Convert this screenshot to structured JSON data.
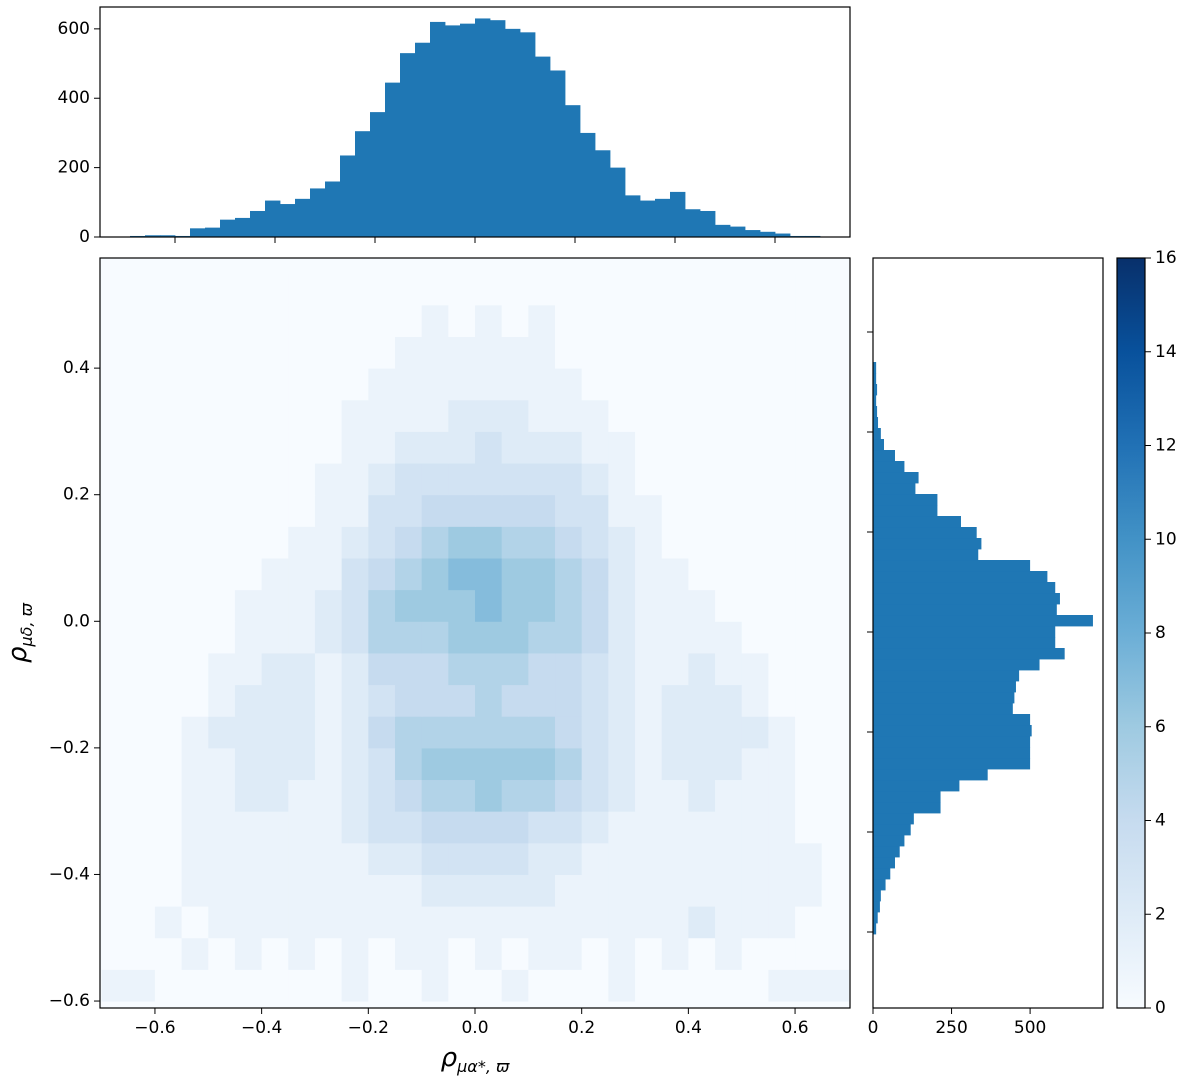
{
  "chart_data": [
    {
      "type": "heatmap",
      "xlabel": {
        "main": "ρ",
        "sub": "μα*, ϖ"
      },
      "ylabel": {
        "main": "ρ",
        "sub": "μδ, ϖ"
      },
      "xlim": [
        -0.703,
        0.703
      ],
      "ylim": [
        -0.611,
        0.574
      ],
      "xticks": [
        {
          "value": -0.6,
          "label": "−0.6"
        },
        {
          "value": -0.4,
          "label": "−0.4"
        },
        {
          "value": -0.2,
          "label": "−0.2"
        },
        {
          "value": 0,
          "label": "0.0"
        },
        0.2,
        0.4,
        0.6
      ],
      "yticks": [
        {
          "value": -0.6,
          "label": "−0.6"
        },
        {
          "value": -0.4,
          "label": "−0.4"
        },
        {
          "value": -0.2,
          "label": "−0.2"
        },
        {
          "value": 0,
          "label": "0.0"
        },
        0.2,
        0.4
      ],
      "xbins": [
        -0.7,
        -0.65,
        -0.6,
        -0.55,
        -0.5,
        -0.45,
        -0.4,
        -0.35,
        -0.3,
        -0.25,
        -0.2,
        -0.15,
        -0.1,
        -0.05,
        0,
        0.05,
        0.1,
        0.15,
        0.2,
        0.25,
        0.3,
        0.35,
        0.4,
        0.45,
        0.5,
        0.55,
        0.6,
        0.65,
        0.7
      ],
      "ybins": [
        -0.6,
        -0.55,
        -0.5,
        -0.45,
        -0.4,
        -0.35,
        -0.3,
        -0.25,
        -0.2,
        -0.15,
        -0.1,
        -0.05,
        0,
        0.05,
        0.1,
        0.15,
        0.2,
        0.25,
        0.3,
        0.35,
        0.4,
        0.45,
        0.5,
        0.55
      ],
      "z": [
        [
          1,
          1,
          0,
          0,
          0,
          0,
          0,
          0,
          0,
          1,
          0,
          0,
          1,
          0,
          0,
          1,
          0,
          0,
          0,
          1,
          0,
          0,
          0,
          0,
          0,
          1,
          1,
          1
        ],
        [
          0,
          0,
          0,
          1,
          0,
          1,
          0,
          1,
          0,
          1,
          0,
          1,
          1,
          0,
          1,
          0,
          1,
          1,
          0,
          1,
          0,
          1,
          0,
          1,
          0,
          0,
          0,
          0
        ],
        [
          0,
          0,
          1,
          0,
          1,
          1,
          1,
          1,
          1,
          1,
          1,
          1,
          1,
          1,
          1,
          1,
          1,
          1,
          1,
          1,
          1,
          1,
          2,
          1,
          1,
          1,
          0,
          0
        ],
        [
          0,
          0,
          0,
          1,
          1,
          1,
          1,
          1,
          1,
          1,
          1,
          1,
          2,
          2,
          2,
          2,
          2,
          1,
          1,
          1,
          1,
          1,
          1,
          1,
          1,
          1,
          1,
          0
        ],
        [
          0,
          0,
          0,
          1,
          1,
          1,
          1,
          1,
          1,
          1,
          2,
          2,
          3,
          3,
          3,
          3,
          2,
          2,
          1,
          1,
          1,
          1,
          1,
          1,
          1,
          1,
          1,
          0
        ],
        [
          0,
          0,
          0,
          1,
          1,
          1,
          1,
          1,
          1,
          2,
          3,
          3,
          4,
          4,
          4,
          4,
          3,
          3,
          2,
          1,
          1,
          1,
          1,
          1,
          1,
          1,
          0,
          0
        ],
        [
          0,
          0,
          0,
          1,
          1,
          2,
          2,
          1,
          1,
          2,
          3,
          4,
          5,
          5,
          6,
          5,
          5,
          4,
          3,
          2,
          1,
          1,
          2,
          1,
          1,
          1,
          0,
          0
        ],
        [
          0,
          0,
          0,
          1,
          1,
          2,
          2,
          2,
          1,
          2,
          3,
          5,
          6,
          6,
          6,
          6,
          6,
          5,
          3,
          2,
          1,
          2,
          2,
          2,
          1,
          1,
          0,
          0
        ],
        [
          0,
          0,
          0,
          1,
          2,
          2,
          2,
          2,
          1,
          2,
          4,
          5,
          5,
          5,
          5,
          5,
          5,
          4,
          3,
          2,
          1,
          2,
          2,
          2,
          2,
          1,
          0,
          0
        ],
        [
          0,
          0,
          0,
          0,
          1,
          2,
          2,
          2,
          1,
          2,
          3,
          4,
          4,
          4,
          5,
          4,
          4,
          4,
          3,
          2,
          1,
          2,
          2,
          2,
          1,
          0,
          0,
          0
        ],
        [
          0,
          0,
          0,
          0,
          1,
          1,
          2,
          2,
          1,
          2,
          4,
          4,
          4,
          5,
          5,
          5,
          4,
          4,
          3,
          2,
          1,
          1,
          2,
          1,
          1,
          0,
          0,
          0
        ],
        [
          0,
          0,
          0,
          0,
          0,
          1,
          1,
          1,
          2,
          3,
          5,
          5,
          5,
          6,
          6,
          6,
          5,
          5,
          4,
          2,
          1,
          1,
          1,
          1,
          0,
          0,
          0,
          0
        ],
        [
          0,
          0,
          0,
          0,
          0,
          1,
          1,
          1,
          2,
          3,
          5,
          6,
          6,
          6,
          7,
          6,
          6,
          5,
          4,
          2,
          1,
          1,
          1,
          0,
          0,
          0,
          0,
          0
        ],
        [
          0,
          0,
          0,
          0,
          0,
          0,
          1,
          1,
          1,
          3,
          4,
          5,
          6,
          7,
          7,
          6,
          6,
          5,
          4,
          2,
          1,
          1,
          0,
          0,
          0,
          0,
          0,
          0
        ],
        [
          0,
          0,
          0,
          0,
          0,
          0,
          0,
          1,
          1,
          2,
          3,
          4,
          5,
          6,
          6,
          5,
          5,
          4,
          3,
          2,
          1,
          0,
          0,
          0,
          0,
          0,
          0,
          0
        ],
        [
          0,
          0,
          0,
          0,
          0,
          0,
          0,
          0,
          1,
          1,
          3,
          3,
          4,
          4,
          4,
          4,
          4,
          3,
          3,
          1,
          1,
          0,
          0,
          0,
          0,
          0,
          0,
          0
        ],
        [
          0,
          0,
          0,
          0,
          0,
          0,
          0,
          0,
          1,
          1,
          2,
          3,
          3,
          3,
          3,
          3,
          3,
          3,
          2,
          1,
          0,
          0,
          0,
          0,
          0,
          0,
          0,
          0
        ],
        [
          0,
          0,
          0,
          0,
          0,
          0,
          0,
          0,
          0,
          1,
          1,
          2,
          2,
          2,
          3,
          2,
          2,
          2,
          1,
          1,
          0,
          0,
          0,
          0,
          0,
          0,
          0,
          0
        ],
        [
          0,
          0,
          0,
          0,
          0,
          0,
          0,
          0,
          0,
          1,
          1,
          1,
          1,
          2,
          2,
          2,
          1,
          1,
          1,
          0,
          0,
          0,
          0,
          0,
          0,
          0,
          0,
          0
        ],
        [
          0,
          0,
          0,
          0,
          0,
          0,
          0,
          0,
          0,
          0,
          1,
          1,
          1,
          1,
          1,
          1,
          1,
          1,
          0,
          0,
          0,
          0,
          0,
          0,
          0,
          0,
          0,
          0
        ],
        [
          0,
          0,
          0,
          0,
          0,
          0,
          0,
          0,
          0,
          0,
          0,
          1,
          1,
          1,
          1,
          1,
          1,
          0,
          0,
          0,
          0,
          0,
          0,
          0,
          0,
          0,
          0,
          0
        ],
        [
          0,
          0,
          0,
          0,
          0,
          0,
          0,
          0,
          0,
          0,
          0,
          0,
          1,
          0,
          1,
          0,
          1,
          0,
          0,
          0,
          0,
          0,
          0,
          0,
          0,
          0,
          0,
          0
        ],
        [
          0,
          0,
          0,
          0,
          0,
          0,
          0,
          0,
          0,
          0,
          0,
          0,
          0,
          0,
          0,
          0,
          0,
          0,
          0,
          0,
          0,
          0,
          0,
          0,
          0,
          0,
          0,
          0
        ]
      ],
      "colormap": "Blues",
      "clim": [
        0,
        16
      ],
      "cticks": [
        0,
        2,
        4,
        6,
        8,
        10,
        12,
        14,
        16
      ]
    },
    {
      "type": "histogram",
      "orientation": "vertical",
      "color": "#1f77b4",
      "xlim": [
        -0.75,
        0.75
      ],
      "ylim": [
        0,
        663
      ],
      "xticks": [
        -0.6,
        -0.4,
        -0.2,
        0,
        0.2,
        0.4,
        0.6
      ],
      "xtick_labels": false,
      "yticks": [
        0,
        200,
        400,
        600
      ],
      "bins": [
        -0.69,
        -0.66,
        -0.63,
        -0.6,
        -0.57,
        -0.54,
        -0.51,
        -0.48,
        -0.45,
        -0.42,
        -0.39,
        -0.36,
        -0.33,
        -0.3,
        -0.27,
        -0.24,
        -0.21,
        -0.18,
        -0.15,
        -0.12,
        -0.09,
        -0.06,
        -0.03,
        0,
        0.03,
        0.06,
        0.09,
        0.12,
        0.15,
        0.18,
        0.21,
        0.24,
        0.27,
        0.3,
        0.33,
        0.36,
        0.39,
        0.42,
        0.45,
        0.48,
        0.51,
        0.54,
        0.57,
        0.6,
        0.63,
        0.66,
        0.69
      ],
      "counts": [
        3,
        5,
        5,
        3,
        25,
        27,
        50,
        55,
        75,
        105,
        95,
        110,
        140,
        160,
        235,
        305,
        360,
        445,
        530,
        560,
        620,
        610,
        615,
        630,
        625,
        600,
        590,
        520,
        480,
        380,
        300,
        250,
        200,
        120,
        105,
        110,
        130,
        80,
        75,
        35,
        30,
        20,
        15,
        10,
        3,
        3
      ]
    },
    {
      "type": "histogram",
      "orientation": "horizontal",
      "color": "#1f77b4",
      "xlim": [
        0,
        732
      ],
      "ylim": [
        -0.752,
        0.748
      ],
      "xticks": [
        0,
        250,
        500
      ],
      "yticks": [
        -0.6,
        -0.4,
        -0.2,
        0,
        0.2,
        0.4,
        0.6
      ],
      "ytick_labels": false,
      "bins": [
        -0.604,
        -0.582,
        -0.56,
        -0.538,
        -0.516,
        -0.494,
        -0.472,
        -0.45,
        -0.428,
        -0.406,
        -0.384,
        -0.362,
        -0.34,
        -0.318,
        -0.296,
        -0.274,
        -0.252,
        -0.23,
        -0.208,
        -0.186,
        -0.164,
        -0.142,
        -0.12,
        -0.098,
        -0.076,
        -0.054,
        -0.032,
        -0.01,
        0.012,
        0.034,
        0.056,
        0.078,
        0.1,
        0.122,
        0.144,
        0.166,
        0.188,
        0.21,
        0.232,
        0.254,
        0.276,
        0.298,
        0.32,
        0.342,
        0.364,
        0.386,
        0.408,
        0.43,
        0.452,
        0.474,
        0.496,
        0.518,
        0.54
      ],
      "counts": [
        10,
        15,
        22,
        25,
        40,
        55,
        70,
        85,
        100,
        120,
        130,
        215,
        215,
        275,
        365,
        500,
        500,
        500,
        505,
        500,
        445,
        450,
        455,
        465,
        530,
        610,
        580,
        580,
        700,
        585,
        595,
        580,
        555,
        500,
        335,
        345,
        330,
        280,
        205,
        205,
        135,
        145,
        100,
        70,
        35,
        25,
        16,
        13,
        10,
        13,
        10,
        10
      ]
    }
  ]
}
